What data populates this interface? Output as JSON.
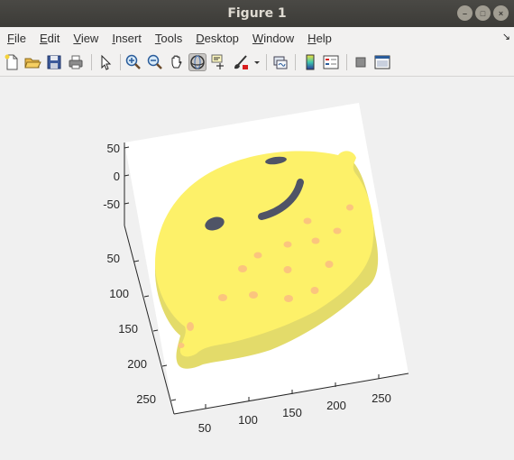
{
  "window": {
    "title": "Figure 1"
  },
  "menu": {
    "file": "File",
    "edit": "Edit",
    "view": "View",
    "insert": "Insert",
    "tools": "Tools",
    "desktop": "Desktop",
    "window": "Window",
    "help": "Help"
  },
  "toolbar": {
    "icons": [
      "new-figure-icon",
      "open-file-icon",
      "save-icon",
      "print-icon",
      "pointer-icon",
      "zoom-in-icon",
      "zoom-out-icon",
      "pan-hand-icon",
      "rotate-3d-icon",
      "data-cursor-icon",
      "brush-icon",
      "dropdown-arrow-icon",
      "link-plot-icon",
      "colorbar-icon",
      "legend-icon",
      "hide-plot-tools-icon",
      "show-plot-tools-icon"
    ],
    "active": "rotate-3d-icon"
  },
  "axes": {
    "z_ticks": [
      "50",
      "0",
      "-50"
    ],
    "y_ticks": [
      "50",
      "100",
      "150",
      "200",
      "250"
    ],
    "x_ticks": [
      "50",
      "100",
      "150",
      "200",
      "250"
    ]
  },
  "colors": {
    "lemon": "#fdf169",
    "lemon_side": "#e3db6a",
    "face": "#4f5466",
    "freckles": "#fbc57e",
    "blush": "#fbb887"
  }
}
